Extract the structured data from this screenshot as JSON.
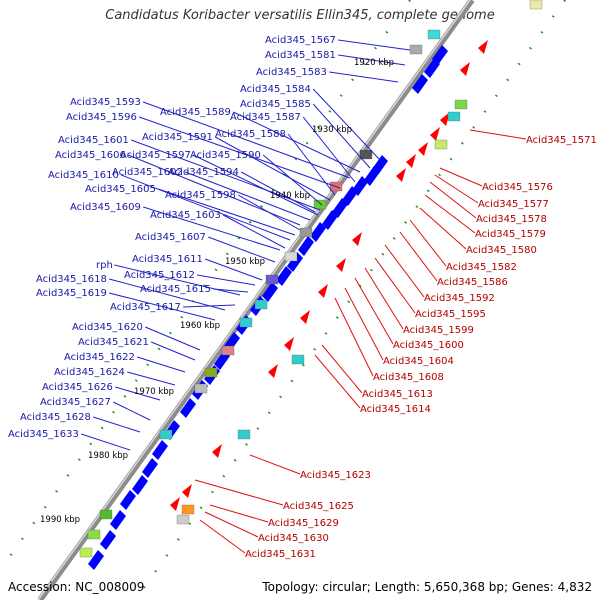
{
  "title": "Candidatus Koribacter versatilis Ellin345, complete genome",
  "accession": "Accession: NC_008009",
  "summary": "Topology: circular; Length: 5,650,368 bp; Genes: 4,832",
  "kbp_ticks": [
    "1920 kbp",
    "1930 kbp",
    "1940 kbp",
    "1950 kbp",
    "1960 kbp",
    "1970 kbp",
    "1980 kbp",
    "1990 kbp"
  ],
  "blue_labels": [
    "Acid345_1567",
    "Acid345_1581",
    "Acid345_1583",
    "Acid345_1584",
    "Acid345_1585",
    "Acid345_1593",
    "Acid345_1589",
    "Acid345_1587",
    "Acid345_1596",
    "Acid345_1588",
    "Acid345_1591",
    "Acid345_1601",
    "Acid345_1597",
    "Acid345_1590",
    "Acid345_1606",
    "Acid345_1602",
    "Acid345_1594",
    "Acid345_1610",
    "Acid345_1605",
    "Acid345_1598",
    "Acid345_1609",
    "Acid345_1603",
    "Acid345_1607",
    "Acid345_1611",
    "rph",
    "Acid345_1612",
    "Acid345_1618",
    "Acid345_1615",
    "Acid345_1619",
    "Acid345_1617",
    "Acid345_1620",
    "Acid345_1621",
    "Acid345_1622",
    "Acid345_1624",
    "Acid345_1626",
    "Acid345_1627",
    "Acid345_1628",
    "Acid345_1633"
  ],
  "red_labels": [
    "Acid345_1571",
    "Acid345_1576",
    "Acid345_1577",
    "Acid345_1578",
    "Acid345_1579",
    "Acid345_1580",
    "Acid345_1582",
    "Acid345_1586",
    "Acid345_1592",
    "Acid345_1595",
    "Acid345_1599",
    "Acid345_1600",
    "Acid345_1604",
    "Acid345_1608",
    "Acid345_1613",
    "Acid345_1614",
    "Acid345_1623",
    "Acid345_1625",
    "Acid345_1629",
    "Acid345_1630",
    "Acid345_1631"
  ],
  "colors": {
    "forward": "#0000ff",
    "reverse": "#ff0000",
    "label_blue": "#1a1aa6",
    "label_red": "#b30000",
    "backbone": "#8c8c8c",
    "dots": "#1a9a1a"
  }
}
